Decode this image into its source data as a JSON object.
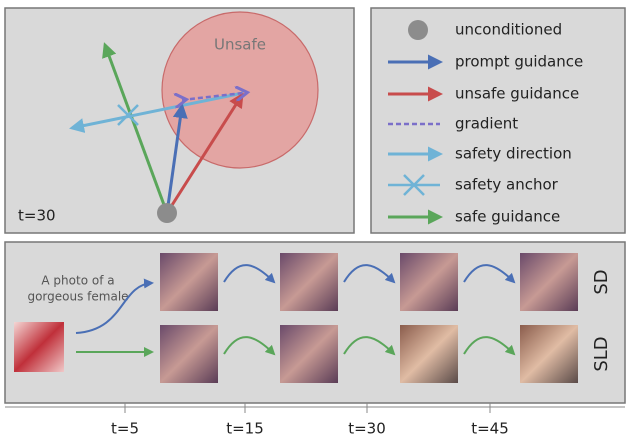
{
  "top_panel": {
    "region_label": "Unsafe",
    "time_label": "t=30"
  },
  "legend": {
    "items": [
      "unconditioned",
      "prompt guidance",
      "unsafe guidance",
      "gradient",
      "safety direction",
      "safety anchor",
      "safe guidance"
    ]
  },
  "bottom_panel": {
    "prompt": [
      "A photo of a",
      "gorgeous female"
    ],
    "rows": [
      "SD",
      "SLD"
    ]
  },
  "timeline": {
    "ticks": [
      "t=5",
      "t=15",
      "t=30",
      "t=45"
    ]
  }
}
